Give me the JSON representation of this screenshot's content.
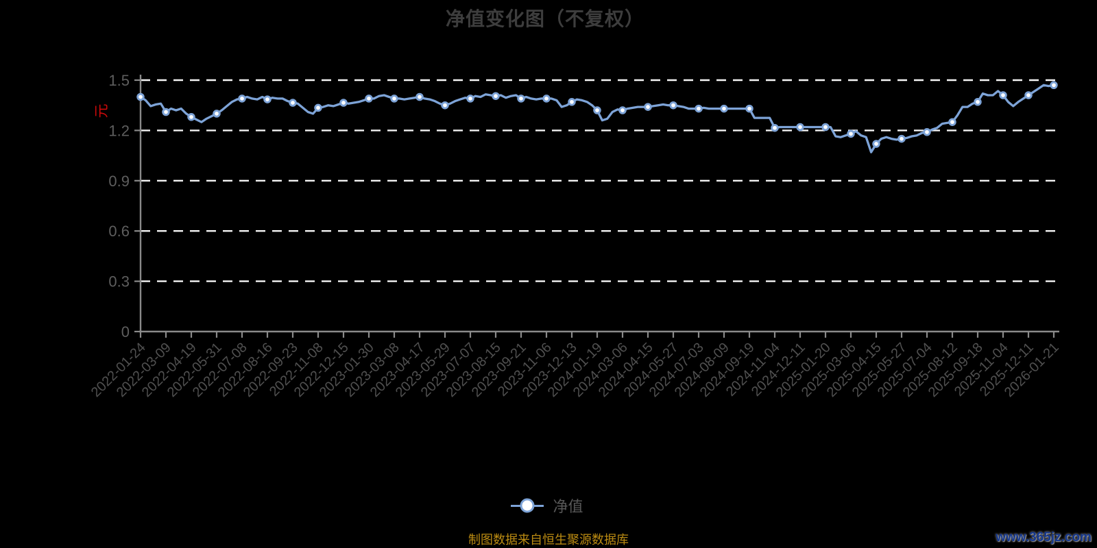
{
  "chart_data": {
    "type": "line",
    "title": "净值变化图（不复权）",
    "unit_label": "元",
    "legend_label": "净值",
    "legend_position": "bottom-center",
    "grid": "horizontal-dashed-white",
    "ylim": [
      0,
      1.5
    ],
    "y_tick_labels": [
      "0",
      "0.3",
      "0.6",
      "0.9",
      "1.2",
      "1.5"
    ],
    "y_ticks": [
      0,
      0.3,
      0.6,
      0.9,
      1.2,
      1.5
    ],
    "categories": [
      "2022-01-24",
      "2022-03-09",
      "2022-04-19",
      "2022-05-31",
      "2022-07-08",
      "2022-08-16",
      "2022-09-23",
      "2022-11-08",
      "2022-12-15",
      "2023-01-30",
      "2023-03-08",
      "2023-04-17",
      "2023-05-29",
      "2023-07-07",
      "2023-08-15",
      "2023-09-21",
      "2023-11-06",
      "2023-12-13",
      "2024-01-19",
      "2024-03-06",
      "2024-04-15",
      "2024-05-27",
      "2024-07-03",
      "2024-08-09",
      "2024-09-19",
      "2024-11-04",
      "2024-12-11",
      "2025-01-20",
      "2025-03-06",
      "2025-04-15",
      "2025-05-27",
      "2025-07-04",
      "2025-08-12",
      "2025-09-18",
      "2025-11-04",
      "2025-12-11",
      "2026-01-21"
    ],
    "series": [
      {
        "name": "净值",
        "values": [
          1.4,
          1.31,
          1.28,
          1.3,
          1.39,
          1.385,
          1.365,
          1.335,
          1.365,
          1.39,
          1.39,
          1.4,
          1.35,
          1.39,
          1.405,
          1.39,
          1.39,
          1.37,
          1.32,
          1.32,
          1.34,
          1.35,
          1.33,
          1.33,
          1.33,
          1.215,
          1.22,
          1.22,
          1.18,
          1.12,
          1.15,
          1.19,
          1.25,
          1.37,
          1.41,
          1.41,
          1.47
        ],
        "marker_every": 5,
        "dense_values": [
          1.4,
          1.38,
          1.345,
          1.355,
          1.36,
          1.31,
          1.33,
          1.32,
          1.33,
          1.3,
          1.28,
          1.265,
          1.25,
          1.27,
          1.285,
          1.3,
          1.32,
          1.345,
          1.37,
          1.385,
          1.39,
          1.4,
          1.39,
          1.385,
          1.4,
          1.385,
          1.395,
          1.39,
          1.39,
          1.375,
          1.365,
          1.36,
          1.335,
          1.31,
          1.3,
          1.335,
          1.34,
          1.35,
          1.345,
          1.355,
          1.365,
          1.36,
          1.365,
          1.37,
          1.38,
          1.39,
          1.39,
          1.405,
          1.41,
          1.4,
          1.39,
          1.39,
          1.385,
          1.39,
          1.395,
          1.4,
          1.39,
          1.385,
          1.375,
          1.36,
          1.35,
          1.36,
          1.375,
          1.385,
          1.395,
          1.39,
          1.405,
          1.4,
          1.415,
          1.41,
          1.405,
          1.41,
          1.395,
          1.405,
          1.41,
          1.39,
          1.4,
          1.39,
          1.385,
          1.39,
          1.39,
          1.39,
          1.38,
          1.34,
          1.35,
          1.37,
          1.385,
          1.38,
          1.37,
          1.35,
          1.32,
          1.26,
          1.27,
          1.31,
          1.325,
          1.32,
          1.33,
          1.335,
          1.34,
          1.34,
          1.34,
          1.345,
          1.35,
          1.355,
          1.35,
          1.35,
          1.345,
          1.34,
          1.33,
          1.33,
          1.33,
          1.335,
          1.33,
          1.33,
          1.33,
          1.33,
          1.33,
          1.33,
          1.33,
          1.33,
          1.33,
          1.275,
          1.275,
          1.275,
          1.275,
          1.215,
          1.22,
          1.22,
          1.22,
          1.22,
          1.22,
          1.22,
          1.22,
          1.22,
          1.22,
          1.22,
          1.22,
          1.165,
          1.16,
          1.17,
          1.18,
          1.195,
          1.17,
          1.16,
          1.07,
          1.12,
          1.15,
          1.16,
          1.15,
          1.145,
          1.15,
          1.155,
          1.165,
          1.17,
          1.185,
          1.19,
          1.205,
          1.215,
          1.24,
          1.245,
          1.25,
          1.29,
          1.34,
          1.34,
          1.36,
          1.37,
          1.42,
          1.41,
          1.41,
          1.435,
          1.41,
          1.37,
          1.345,
          1.37,
          1.39,
          1.41,
          1.43,
          1.45,
          1.47,
          1.465,
          1.47
        ]
      }
    ],
    "colors": {
      "background": "#000000",
      "title": "#3d3d3d",
      "line": "#7da3d7",
      "marker_fill": "#ffffff",
      "gridline": "#f5f5f5",
      "axis": "#8a8a8a",
      "y_label": "#5e5e5e",
      "x_label": "#505050",
      "unit_label": "#cf0a0a",
      "legend_text": "#585858",
      "footer_text": "#bb8b12",
      "watermark_text": "#15378d"
    }
  },
  "footer": {
    "source_text": "制图数据来自恒生聚源数据库",
    "watermark": "www.365jz.com"
  }
}
